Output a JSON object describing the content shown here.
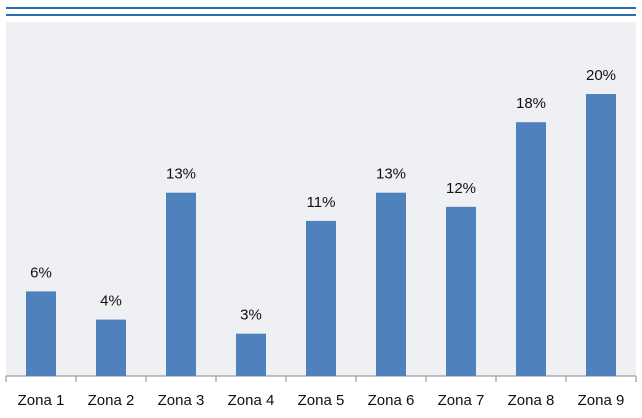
{
  "chart_data": {
    "type": "bar",
    "categories": [
      "Zona 1",
      "Zona 2",
      "Zona 3",
      "Zona 4",
      "Zona 5",
      "Zona 6",
      "Zona 7",
      "Zona 8",
      "Zona 9"
    ],
    "values": [
      6,
      4,
      13,
      3,
      11,
      13,
      12,
      18,
      20
    ],
    "value_labels": [
      "6%",
      "4%",
      "13%",
      "3%",
      "11%",
      "13%",
      "12%",
      "18%",
      "20%"
    ],
    "color": "#4f81bd"
  }
}
